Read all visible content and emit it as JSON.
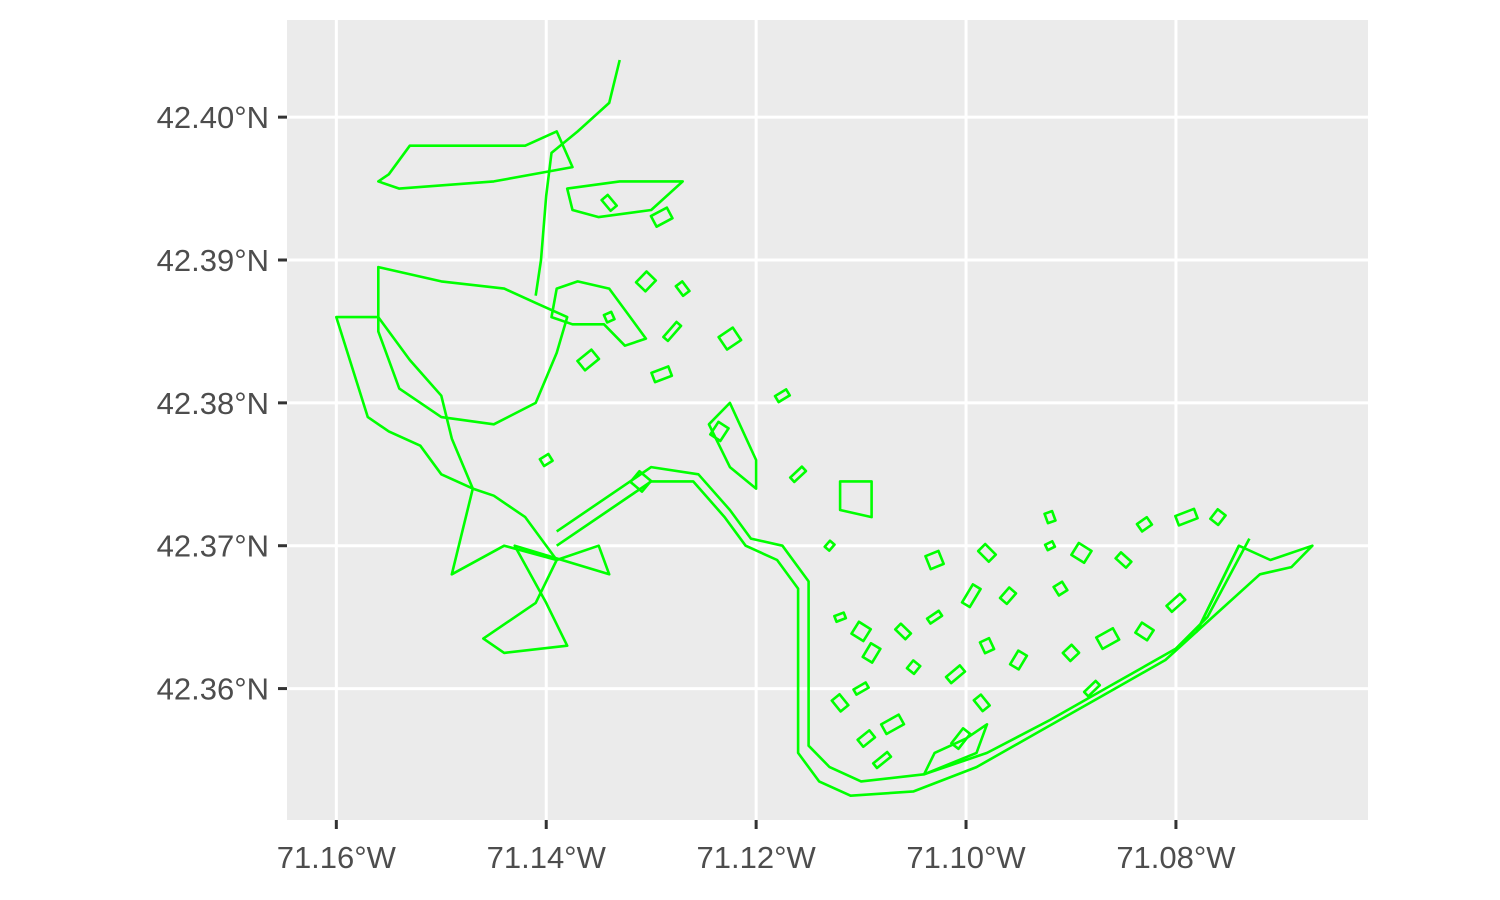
{
  "map": {
    "type": "geo-polygon-outline",
    "panel_color": "#ebebeb",
    "grid_color": "#ffffff",
    "stroke_color": "#00ff00",
    "x_ticks": [
      {
        "value": -71.16,
        "label": "71.16°W"
      },
      {
        "value": -71.14,
        "label": "71.14°W"
      },
      {
        "value": -71.12,
        "label": "71.12°W"
      },
      {
        "value": -71.1,
        "label": "71.10°W"
      },
      {
        "value": -71.08,
        "label": "71.08°W"
      }
    ],
    "y_ticks": [
      {
        "value": 42.4,
        "label": "42.40°N"
      },
      {
        "value": 42.39,
        "label": "42.39°N"
      },
      {
        "value": 42.38,
        "label": "42.38°N"
      },
      {
        "value": 42.37,
        "label": "42.37°N"
      },
      {
        "value": 42.36,
        "label": "42.36°N"
      }
    ],
    "xlim": [
      -71.1647,
      -71.0617
    ],
    "ylim": [
      42.3508,
      42.4068
    ]
  },
  "chart_data": {
    "type": "map",
    "title": "",
    "xlabel": "",
    "ylabel": "",
    "grid": true,
    "features": [
      {
        "kind": "park-outline",
        "coords": [
          [
            -71.155,
            42.396
          ],
          [
            -71.153,
            42.398
          ],
          [
            -71.142,
            42.398
          ],
          [
            -71.139,
            42.399
          ],
          [
            -71.1375,
            42.3965
          ],
          [
            -71.145,
            42.3955
          ],
          [
            -71.154,
            42.395
          ],
          [
            -71.156,
            42.3955
          ]
        ]
      },
      {
        "kind": "reservoir-outline",
        "coords": [
          [
            -71.156,
            42.3895
          ],
          [
            -71.15,
            42.3885
          ],
          [
            -71.144,
            42.388
          ],
          [
            -71.141,
            42.387
          ],
          [
            -71.138,
            42.386
          ],
          [
            -71.139,
            42.3835
          ],
          [
            -71.141,
            42.38
          ],
          [
            -71.145,
            42.3785
          ],
          [
            -71.15,
            42.379
          ],
          [
            -71.154,
            42.381
          ],
          [
            -71.156,
            42.385
          ]
        ]
      },
      {
        "kind": "park-outline",
        "coords": [
          [
            -71.16,
            42.386
          ],
          [
            -71.157,
            42.379
          ],
          [
            -71.155,
            42.378
          ],
          [
            -71.152,
            42.377
          ],
          [
            -71.15,
            42.375
          ],
          [
            -71.147,
            42.374
          ],
          [
            -71.149,
            42.3775
          ],
          [
            -71.15,
            42.3805
          ],
          [
            -71.153,
            42.383
          ],
          [
            -71.156,
            42.386
          ]
        ]
      },
      {
        "kind": "park-outline",
        "coords": [
          [
            -71.147,
            42.374
          ],
          [
            -71.149,
            42.368
          ],
          [
            -71.144,
            42.37
          ],
          [
            -71.139,
            42.369
          ],
          [
            -71.142,
            42.372
          ],
          [
            -71.145,
            42.3735
          ]
        ]
      },
      {
        "kind": "park-outline",
        "coords": [
          [
            -71.143,
            42.37
          ],
          [
            -71.14,
            42.366
          ],
          [
            -71.138,
            42.363
          ],
          [
            -71.144,
            42.3625
          ],
          [
            -71.146,
            42.3635
          ],
          [
            -71.141,
            42.366
          ],
          [
            -71.139,
            42.369
          ],
          [
            -71.135,
            42.37
          ],
          [
            -71.134,
            42.368
          ]
        ]
      },
      {
        "kind": "river-corridor",
        "coords": [
          [
            -71.139,
            42.37
          ],
          [
            -71.134,
            42.3725
          ],
          [
            -71.13,
            42.3745
          ],
          [
            -71.126,
            42.3745
          ],
          [
            -71.123,
            42.372
          ],
          [
            -71.121,
            42.37
          ],
          [
            -71.118,
            42.369
          ],
          [
            -71.116,
            42.367
          ],
          [
            -71.116,
            42.363
          ],
          [
            -71.116,
            42.359
          ],
          [
            -71.116,
            42.3555
          ],
          [
            -71.114,
            42.3535
          ],
          [
            -71.111,
            42.3525
          ],
          [
            -71.105,
            42.3528
          ],
          [
            -71.099,
            42.3545
          ],
          [
            -71.093,
            42.357
          ],
          [
            -71.087,
            42.3595
          ],
          [
            -71.081,
            42.362
          ],
          [
            -71.078,
            42.364
          ],
          [
            -71.074,
            42.37
          ]
        ]
      },
      {
        "kind": "river-corridor",
        "coords": [
          [
            -71.139,
            42.371
          ],
          [
            -71.134,
            42.3735
          ],
          [
            -71.13,
            42.3755
          ],
          [
            -71.1255,
            42.375
          ],
          [
            -71.1225,
            42.3725
          ],
          [
            -71.1205,
            42.3705
          ],
          [
            -71.1175,
            42.37
          ],
          [
            -71.115,
            42.3675
          ],
          [
            -71.115,
            42.363
          ],
          [
            -71.115,
            42.359
          ],
          [
            -71.115,
            42.356
          ],
          [
            -71.113,
            42.3545
          ],
          [
            -71.11,
            42.3535
          ],
          [
            -71.104,
            42.354
          ],
          [
            -71.098,
            42.3555
          ],
          [
            -71.092,
            42.3578
          ],
          [
            -71.086,
            42.3603
          ],
          [
            -71.08,
            42.3628
          ],
          [
            -71.077,
            42.365
          ],
          [
            -71.073,
            42.3705
          ]
        ]
      },
      {
        "kind": "river-corridor",
        "coords": [
          [
            -71.133,
            42.404
          ],
          [
            -71.134,
            42.401
          ],
          [
            -71.137,
            42.399
          ],
          [
            -71.1395,
            42.3975
          ],
          [
            -71.14,
            42.3945
          ],
          [
            -71.1405,
            42.39
          ],
          [
            -71.141,
            42.3875
          ]
        ]
      },
      {
        "kind": "park-outline",
        "coords": [
          [
            -71.139,
            42.388
          ],
          [
            -71.137,
            42.3885
          ],
          [
            -71.134,
            42.388
          ],
          [
            -71.132,
            42.386
          ],
          [
            -71.1305,
            42.3845
          ],
          [
            -71.1325,
            42.384
          ],
          [
            -71.1345,
            42.3855
          ],
          [
            -71.1375,
            42.3855
          ],
          [
            -71.1395,
            42.386
          ]
        ]
      },
      {
        "kind": "park-outline",
        "coords": [
          [
            -71.138,
            42.395
          ],
          [
            -71.133,
            42.3955
          ],
          [
            -71.127,
            42.3955
          ],
          [
            -71.13,
            42.3935
          ],
          [
            -71.135,
            42.393
          ],
          [
            -71.1375,
            42.3935
          ]
        ]
      },
      {
        "kind": "park-outline",
        "coords": [
          [
            -71.1245,
            42.3785
          ],
          [
            -71.1225,
            42.38
          ],
          [
            -71.12,
            42.376
          ],
          [
            -71.12,
            42.374
          ],
          [
            -71.1225,
            42.3755
          ]
        ]
      },
      {
        "kind": "park-outline",
        "coords": [
          [
            -71.112,
            42.3745
          ],
          [
            -71.109,
            42.3745
          ],
          [
            -71.109,
            42.372
          ],
          [
            -71.112,
            42.3725
          ]
        ]
      },
      {
        "kind": "park-outline",
        "coords": [
          [
            -71.104,
            42.354
          ],
          [
            -71.099,
            42.3555
          ],
          [
            -71.098,
            42.3575
          ],
          [
            -71.1,
            42.3565
          ],
          [
            -71.103,
            42.3555
          ]
        ]
      },
      {
        "kind": "park-outline",
        "coords": [
          [
            -71.078,
            42.364
          ],
          [
            -71.074,
            42.37
          ],
          [
            -71.071,
            42.369
          ],
          [
            -71.067,
            42.37
          ],
          [
            -71.069,
            42.3685
          ],
          [
            -71.072,
            42.368
          ]
        ]
      }
    ],
    "small_parcels": [
      [
        -71.134,
        42.394
      ],
      [
        -71.1305,
        42.3885
      ],
      [
        -71.129,
        42.393
      ],
      [
        -71.127,
        42.388
      ],
      [
        -71.128,
        42.385
      ],
      [
        -71.134,
        42.386
      ],
      [
        -71.136,
        42.383
      ],
      [
        -71.129,
        42.382
      ],
      [
        -71.1225,
        42.3845
      ],
      [
        -71.1175,
        42.3805
      ],
      [
        -71.1235,
        42.378
      ],
      [
        -71.14,
        42.376
      ],
      [
        -71.131,
        42.3745
      ],
      [
        -71.116,
        42.375
      ],
      [
        -71.113,
        42.37
      ],
      [
        -71.103,
        42.369
      ],
      [
        -71.098,
        42.3695
      ],
      [
        -71.092,
        42.37
      ],
      [
        -71.092,
        42.372
      ],
      [
        -71.089,
        42.3695
      ],
      [
        -71.085,
        42.369
      ],
      [
        -71.083,
        42.3715
      ],
      [
        -71.079,
        42.372
      ],
      [
        -71.076,
        42.372
      ],
      [
        -71.091,
        42.367
      ],
      [
        -71.096,
        42.3665
      ],
      [
        -71.0995,
        42.3665
      ],
      [
        -71.103,
        42.365
      ],
      [
        -71.106,
        42.364
      ],
      [
        -71.109,
        42.3625
      ],
      [
        -71.11,
        42.364
      ],
      [
        -71.112,
        42.365
      ],
      [
        -71.11,
        42.36
      ],
      [
        -71.112,
        42.359
      ],
      [
        -71.105,
        42.3615
      ],
      [
        -71.101,
        42.361
      ],
      [
        -71.098,
        42.363
      ],
      [
        -71.09,
        42.3625
      ],
      [
        -71.0865,
        42.3635
      ],
      [
        -71.083,
        42.364
      ],
      [
        -71.08,
        42.366
      ],
      [
        -71.108,
        42.355
      ],
      [
        -71.1095,
        42.3565
      ],
      [
        -71.107,
        42.3575
      ],
      [
        -71.1005,
        42.3565
      ],
      [
        -71.0985,
        42.359
      ],
      [
        -71.095,
        42.362
      ],
      [
        -71.088,
        42.36
      ]
    ]
  }
}
